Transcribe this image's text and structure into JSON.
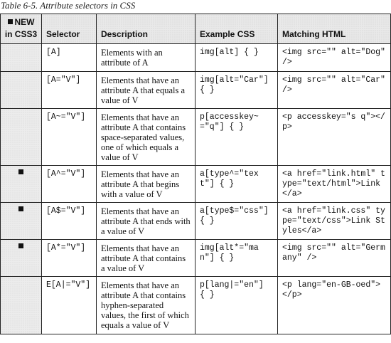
{
  "caption": "Table 6-5. Attribute selectors in CSS",
  "headers": {
    "new_line1": "NEW",
    "new_line2": "in CSS3",
    "selector": "Selector",
    "description": "Description",
    "example": "Example CSS",
    "matching": "Matching HTML"
  },
  "rows": [
    {
      "is_new": false,
      "selector": "[A]",
      "description": "Elements with an attribute of A",
      "example": "img[alt] { }",
      "matching": "<img src=\"\" alt=\"Dog\" />"
    },
    {
      "is_new": false,
      "selector": "[A=\"V\"]",
      "description": "Elements that have an attribute A that equals a value of V",
      "example": "img[alt=\"Car\"] { }",
      "matching": "<img src=\"\" alt=\"Car\" />"
    },
    {
      "is_new": false,
      "selector": "[A~=\"V\"]",
      "description": "Elements that have an attribute A that contains space-separated values, one of which equals a value of V",
      "example": "p[accesskey~=\"q\"] { }",
      "matching": "<p accesskey=\"s q\"></p>"
    },
    {
      "is_new": true,
      "selector": "[A^=\"V\"]",
      "description": "Elements that have an attribute A that begins with a value of V",
      "example": "a[type^=\"text\"] { }",
      "matching": "<a href=\"link.html\" type=\"text/html\">Link</a>"
    },
    {
      "is_new": true,
      "selector": "[A$=\"V\"]",
      "description": "Elements that have an attribute A that ends with a value of V",
      "example": "a[type$=\"css\"] { }",
      "matching": "<a href=\"link.css\" type=\"text/css\">Link Styles</a>"
    },
    {
      "is_new": true,
      "selector": "[A*=\"V\"]",
      "description": "Elements that have an attribute A that contains a value of V",
      "example": "img[alt*=\"man\"] { }",
      "matching": "<img src=\"\" alt=\"Germany\" />"
    },
    {
      "is_new": false,
      "selector": "E[A|=\"V\"]",
      "description": "Elements that have an attribute A that contains hyphen-separated values, the first of which equals a value of V",
      "example": "p[lang|=\"en\"] { }",
      "matching": "<p lang=\"en-GB-oed\"></p>"
    }
  ]
}
